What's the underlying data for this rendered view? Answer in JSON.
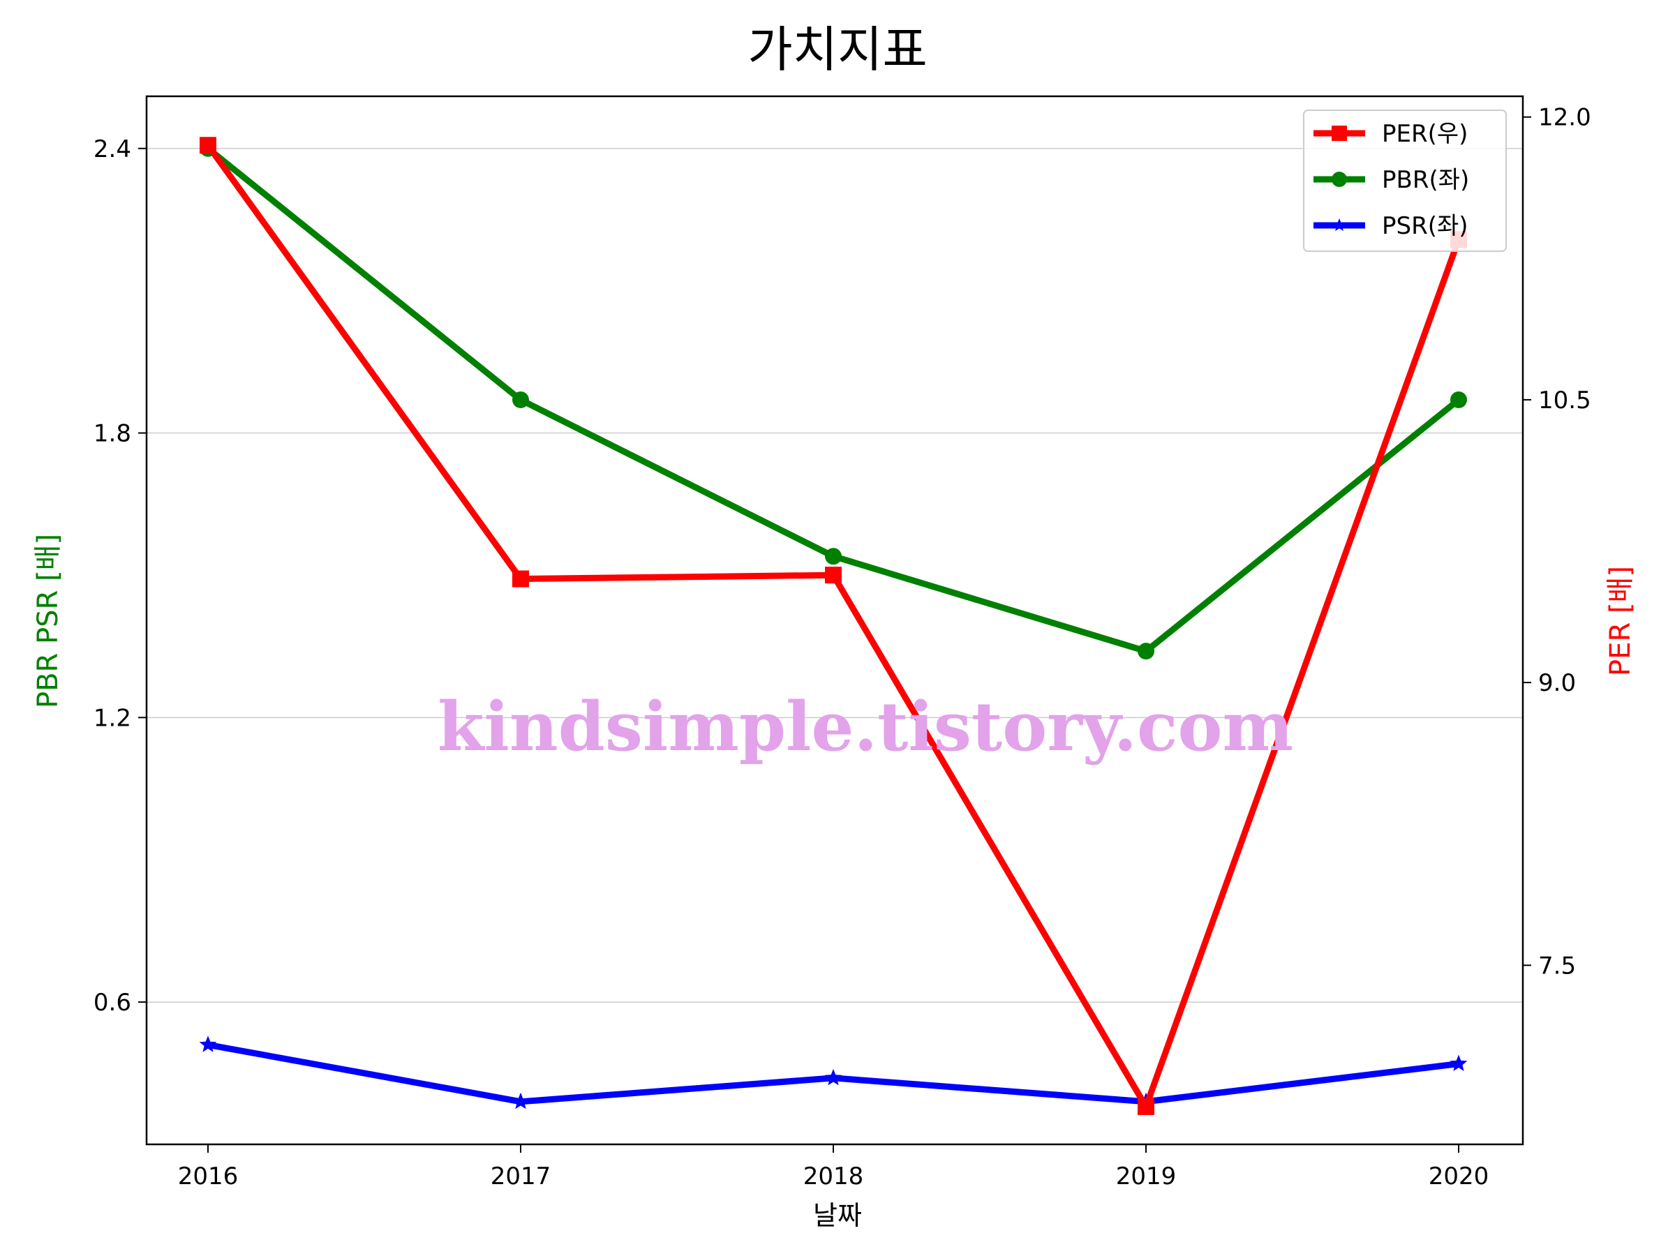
{
  "chart_data": {
    "type": "line",
    "title": "가치지표",
    "xlabel": "날짜",
    "ylabel_left": "PBR PSR [배]",
    "ylabel_right": "PER [배]",
    "categories": [
      "2016",
      "2017",
      "2018",
      "2019",
      "2020"
    ],
    "left_axis": {
      "ylim": [
        0.3,
        2.51
      ],
      "ticks": [
        "0.6",
        "1.2",
        "1.8",
        "2.4"
      ],
      "tick_values": [
        0.6,
        1.2,
        1.8,
        2.4
      ]
    },
    "right_axis": {
      "ylim": [
        6.55,
        12.11
      ],
      "ticks": [
        "7.5",
        "9.0",
        "10.5",
        "12.0"
      ],
      "tick_values": [
        7.5,
        9.0,
        10.5,
        12.0
      ]
    },
    "grid": "horizontal",
    "legend_position": "top-right",
    "series": [
      {
        "name": "PER(우)",
        "axis": "right",
        "color": "#ff0000",
        "marker": "square",
        "values": [
          11.85,
          9.55,
          9.57,
          6.75,
          11.35
        ]
      },
      {
        "name": "PBR(좌)",
        "axis": "left",
        "color": "#008000",
        "marker": "circle",
        "values": [
          2.4,
          1.87,
          1.54,
          1.34,
          1.87
        ]
      },
      {
        "name": "PSR(좌)",
        "axis": "left",
        "color": "#0000ff",
        "marker": "star",
        "values": [
          0.51,
          0.39,
          0.44,
          0.39,
          0.47
        ]
      }
    ],
    "watermark": "kindsimple.tistory.com",
    "colors": {
      "left_label": "#008000",
      "right_label": "#ff0000",
      "watermark": "#e2a3ea"
    }
  }
}
